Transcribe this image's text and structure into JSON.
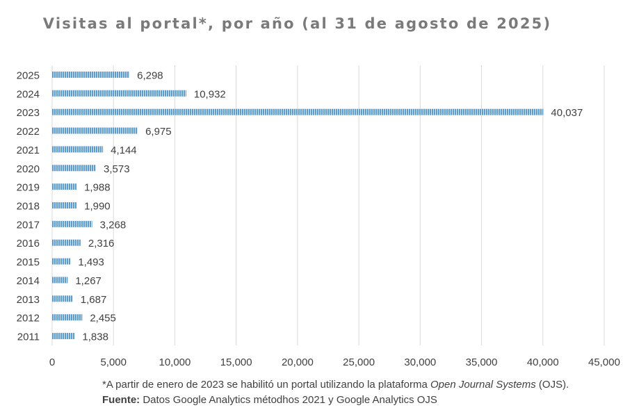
{
  "chart_data": {
    "type": "bar",
    "orientation": "horizontal",
    "title": "Visitas al portal*, por año (al 31 de agosto de 2025)",
    "categories": [
      "2025",
      "2024",
      "2023",
      "2022",
      "2021",
      "2020",
      "2019",
      "2018",
      "2017",
      "2016",
      "2015",
      "2014",
      "2013",
      "2012",
      "2011"
    ],
    "values": [
      6298,
      10932,
      40037,
      6975,
      4144,
      3573,
      1988,
      1990,
      3268,
      2316,
      1493,
      1267,
      1687,
      2455,
      1838
    ],
    "value_labels": [
      "6,298",
      "10,932",
      "40,037",
      "6,975",
      "4,144",
      "3,573",
      "1,988",
      "1,990",
      "3,268",
      "2,316",
      "1,493",
      "1,267",
      "1,687",
      "2,455",
      "1,838"
    ],
    "x_ticks": [
      0,
      5000,
      10000,
      15000,
      20000,
      25000,
      30000,
      35000,
      40000,
      45000
    ],
    "x_tick_labels": [
      "0",
      "5,000",
      "10,000",
      "15,000",
      "20,000",
      "25,000",
      "30,000",
      "35,000",
      "40,000",
      "45,000"
    ],
    "xlim": [
      0,
      45000
    ],
    "xlabel": "",
    "ylabel": "",
    "grid": "vertical",
    "legend": "none",
    "bar_color": "#5b9bd5",
    "bar_pattern": "vertical-stripes"
  },
  "footnote": {
    "prefix": "*A partir de enero de 2023 se habilitó un portal utilizando la plataforma ",
    "italic": "Open Journal Systems",
    "suffix": " (OJS)."
  },
  "source": {
    "label": "Fuente:",
    "text": " Datos Google Analytics métodhos 2021 y Google Analytics OJS"
  }
}
